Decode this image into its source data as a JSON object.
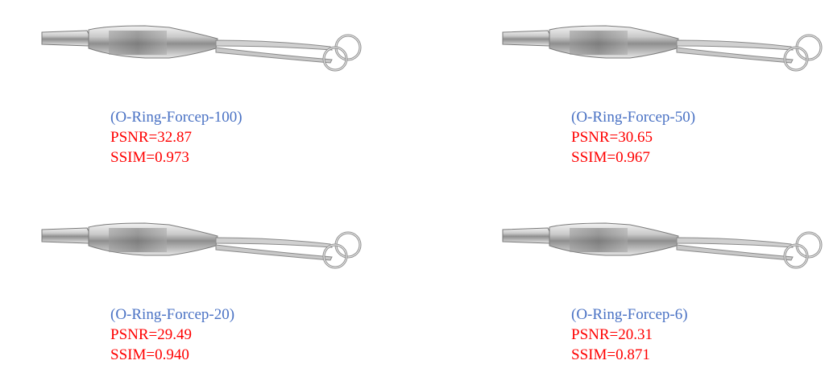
{
  "colors": {
    "title": "#4a72c4",
    "metric": "#ff0000"
  },
  "panels": [
    {
      "title": "(O-Ring-Forcep-100)",
      "psnr": "PSNR=32.87",
      "ssim": "SSIM=0.973"
    },
    {
      "title": "(O-Ring-Forcep-50)",
      "psnr": "PSNR=30.65",
      "ssim": "SSIM=0.967"
    },
    {
      "title": "(O-Ring-Forcep-20)",
      "psnr": "PSNR=29.49",
      "ssim": "SSIM=0.940"
    },
    {
      "title": "(O-Ring-Forcep-6)",
      "psnr": "PSNR=20.31",
      "ssim": "SSIM=0.871"
    }
  ]
}
